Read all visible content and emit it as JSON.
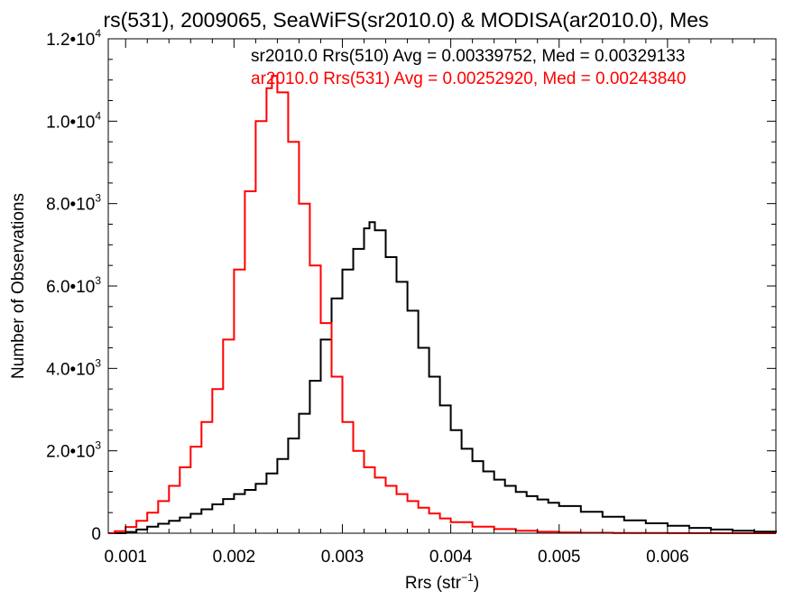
{
  "chart_data": {
    "type": "line",
    "title": "rs(531), 2009065, SeaWiFS(sr2010.0) & MODISA(ar2010.0), Mes",
    "xlabel": "Rrs (str",
    "xlabel_sup": "−1",
    "xlabel_close": ")",
    "ylabel": "Number of Observations",
    "xlim": [
      0.00084,
      0.007
    ],
    "ylim": [
      0,
      12000
    ],
    "grid": false,
    "x_ticks": [
      {
        "value": 0.001,
        "label": "0.001"
      },
      {
        "value": 0.002,
        "label": "0.002"
      },
      {
        "value": 0.003,
        "label": "0.003"
      },
      {
        "value": 0.004,
        "label": "0.004"
      },
      {
        "value": 0.005,
        "label": "0.005"
      },
      {
        "value": 0.006,
        "label": "0.006"
      }
    ],
    "y_ticks": [
      {
        "value": 0,
        "base": "0",
        "exp": ""
      },
      {
        "value": 2000,
        "base": "2.0•10",
        "exp": "3"
      },
      {
        "value": 4000,
        "base": "4.0•10",
        "exp": "3"
      },
      {
        "value": 6000,
        "base": "6.0•10",
        "exp": "3"
      },
      {
        "value": 8000,
        "base": "8.0•10",
        "exp": "3"
      },
      {
        "value": 10000,
        "base": "1.0•10",
        "exp": "4"
      },
      {
        "value": 12000,
        "base": "1.2•10",
        "exp": "4"
      }
    ],
    "annotations": [
      {
        "text": "sr2010.0 Rrs(510) Avg = 0.00339752, Med = 0.00329133",
        "color": "#000000"
      },
      {
        "text": "ar2010.0 Rrs(531) Avg = 0.00252920, Med = 0.00243840",
        "color": "#ff0000"
      }
    ],
    "series": [
      {
        "color": "#000000",
        "x": [
          0.00084,
          0.0009,
          0.001,
          0.0011,
          0.0012,
          0.0013,
          0.0014,
          0.0015,
          0.0016,
          0.0017,
          0.0018,
          0.0019,
          0.002,
          0.0021,
          0.0022,
          0.0023,
          0.0024,
          0.0025,
          0.0026,
          0.0027,
          0.0028,
          0.0029,
          0.003,
          0.0031,
          0.0032,
          0.00325,
          0.0033,
          0.0034,
          0.0035,
          0.0036,
          0.0037,
          0.0038,
          0.0039,
          0.004,
          0.0041,
          0.0042,
          0.0043,
          0.0044,
          0.0045,
          0.0046,
          0.0047,
          0.0048,
          0.0049,
          0.005,
          0.0052,
          0.0054,
          0.0056,
          0.0058,
          0.006,
          0.0062,
          0.0064,
          0.0066,
          0.0068,
          0.007
        ],
        "y": [
          0,
          0,
          30,
          90,
          160,
          230,
          300,
          380,
          470,
          580,
          700,
          830,
          950,
          1050,
          1200,
          1450,
          1800,
          2300,
          2900,
          3700,
          4700,
          5700,
          6400,
          6900,
          7400,
          7550,
          7350,
          6700,
          6100,
          5400,
          4500,
          3800,
          3100,
          2500,
          2050,
          1750,
          1500,
          1300,
          1150,
          1000,
          900,
          820,
          740,
          660,
          520,
          400,
          310,
          240,
          180,
          130,
          90,
          60,
          40,
          20
        ]
      },
      {
        "color": "#ff0000",
        "x": [
          0.00084,
          0.0009,
          0.001,
          0.0011,
          0.0012,
          0.0013,
          0.0014,
          0.0015,
          0.0016,
          0.0017,
          0.0018,
          0.0019,
          0.002,
          0.0021,
          0.0022,
          0.0023,
          0.00235,
          0.0024,
          0.0025,
          0.0026,
          0.0027,
          0.0028,
          0.0029,
          0.003,
          0.0031,
          0.0032,
          0.0033,
          0.0034,
          0.0035,
          0.0036,
          0.0037,
          0.0038,
          0.0039,
          0.004,
          0.0042,
          0.0044,
          0.0046,
          0.0048,
          0.005,
          0.0052,
          0.0055,
          0.006,
          0.0065,
          0.007
        ],
        "y": [
          0,
          50,
          150,
          300,
          500,
          780,
          1150,
          1600,
          2100,
          2700,
          3500,
          4700,
          6400,
          8300,
          10000,
          10800,
          11100,
          10700,
          9500,
          8000,
          6500,
          5100,
          3800,
          2700,
          2000,
          1600,
          1350,
          1150,
          950,
          780,
          620,
          480,
          360,
          270,
          160,
          100,
          60,
          35,
          20,
          12,
          6,
          2,
          0,
          0
        ]
      }
    ]
  }
}
